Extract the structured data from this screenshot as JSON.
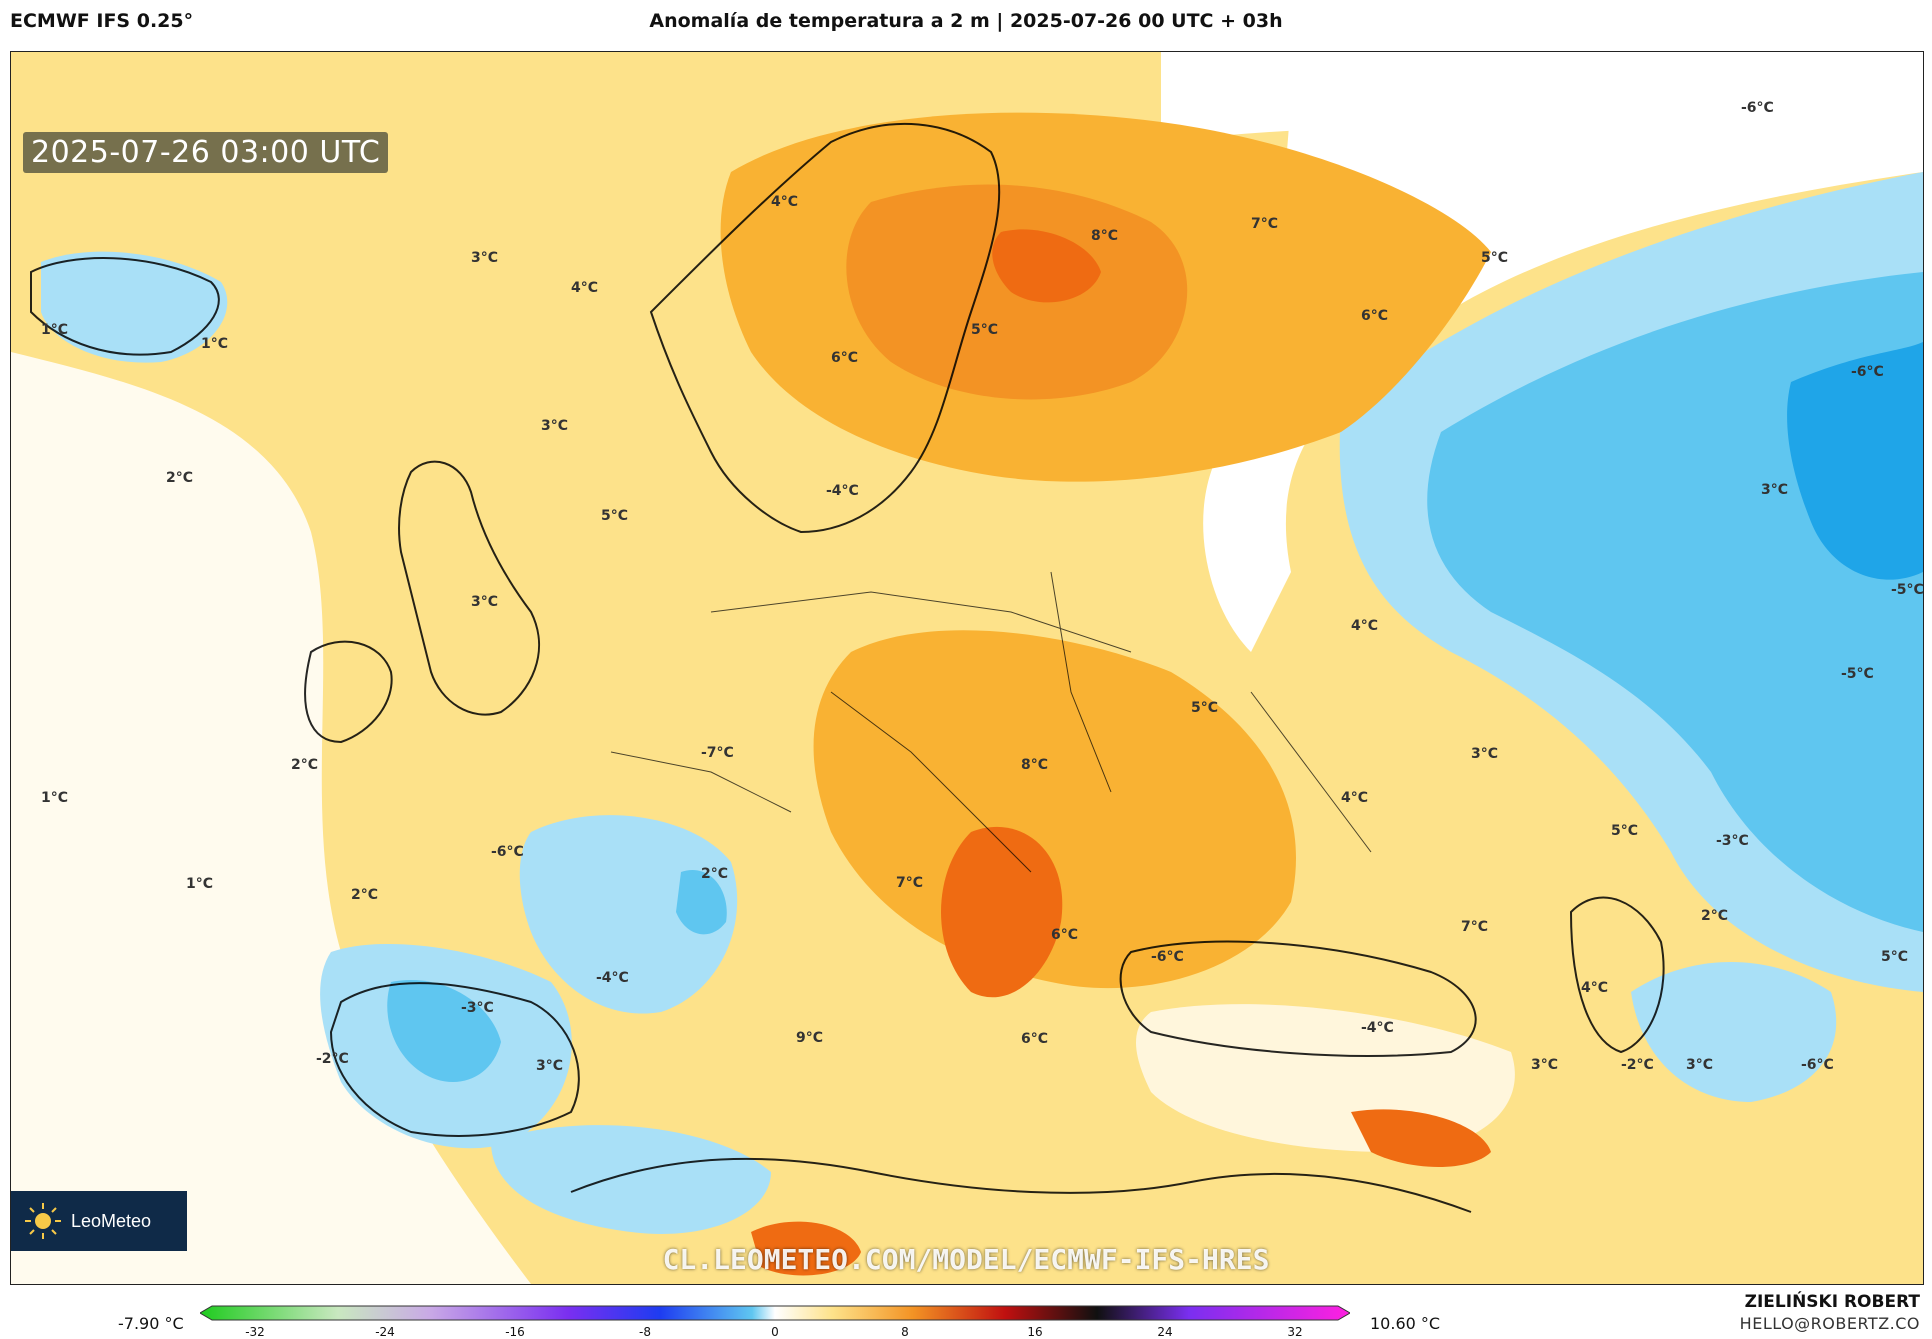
{
  "header": {
    "model": "ECMWF IFS 0.25°",
    "title": "Anomalía de temperatura a 2 m | 2025-07-26 00 UTC + 03h"
  },
  "map": {
    "timestamp": "2025-07-26 03:00 UTC",
    "watermark": "CL.LEOMETEO.COM/MODEL/ECMWF-IFS-HRES",
    "logo": "LeoMeteo",
    "labels": [
      "4°C",
      "8°C",
      "7°C",
      "-6°C",
      "5°C",
      "3°C",
      "4°C",
      "1°C",
      "1°C",
      "5°C",
      "6°C",
      "6°C",
      "-6°C",
      "3°C",
      "2°C",
      "3°C",
      "-4°C",
      "5°C",
      "-5°C",
      "3°C",
      "4°C",
      "-5°C",
      "5°C",
      "-7°C",
      "8°C",
      "3°C",
      "2°C",
      "1°C",
      "4°C",
      "-6°C",
      "5°C",
      "-3°C",
      "2°C",
      "7°C",
      "1°C",
      "2°C",
      "7°C",
      "6°C",
      "-6°C",
      "5°C",
      "-4°C",
      "-3°C",
      "4°C",
      "-4°C",
      "9°C",
      "6°C",
      "-2°C",
      "3°C",
      "3°C",
      "-2°C",
      "3°C",
      "-6°C",
      "2°C"
    ]
  },
  "legend": {
    "min": "-7.90 °C",
    "max": "10.60 °C",
    "ticks": [
      "-32",
      "-24",
      "-16",
      "-8",
      "0",
      "8",
      "16",
      "24",
      "32"
    ]
  },
  "credits": {
    "author": "ZIELIŃSKI ROBERT",
    "contact": "HELLO@ROBERTZ.CO"
  },
  "colors": {
    "ocean_warm": "#fde28a",
    "land_warm": "#f9b233",
    "hot": "#ef6b12",
    "cold": "#5fc6f0",
    "cold_deep": "#1fa5e8",
    "neutral": "#ffffff"
  }
}
